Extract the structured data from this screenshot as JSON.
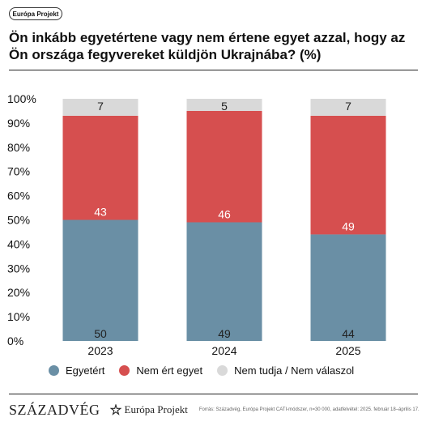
{
  "badge": "Európa Projekt",
  "title": "Ön inkább egyetértene vagy nem értene egyet azzal, hogy az Ön országa fegyvereket küldjön Ukrajnába? (%)",
  "colors": {
    "agree": "#6a8fa5",
    "disagree": "#d64f4f",
    "dontknow": "#d9d9d9"
  },
  "chart_data": {
    "type": "bar",
    "stacked": true,
    "categories": [
      "2023",
      "2024",
      "2025"
    ],
    "series": [
      {
        "name": "Egyetért",
        "values": [
          50,
          49,
          44
        ]
      },
      {
        "name": "Nem ért egyet",
        "values": [
          43,
          46,
          49
        ]
      },
      {
        "name": "Nem tudja / Nem válaszol",
        "values": [
          7,
          5,
          7
        ]
      }
    ],
    "ylim": [
      0,
      100
    ],
    "yticks": [
      "0%",
      "10%",
      "20%",
      "30%",
      "40%",
      "50%",
      "60%",
      "70%",
      "80%",
      "90%",
      "100%"
    ],
    "legend_position": "bottom"
  },
  "legend": [
    "Egyetért",
    "Nem ért egyet",
    "Nem tudja / Nem válaszol"
  ],
  "footer": {
    "brand1": "SZÁZADVÉG",
    "brand2": "Európa Projekt",
    "source": "Forrás: Századvég, Európa Projekt CATI-módszer, n=30 000, adatfelvétel: 2025. február 18–április 17."
  }
}
